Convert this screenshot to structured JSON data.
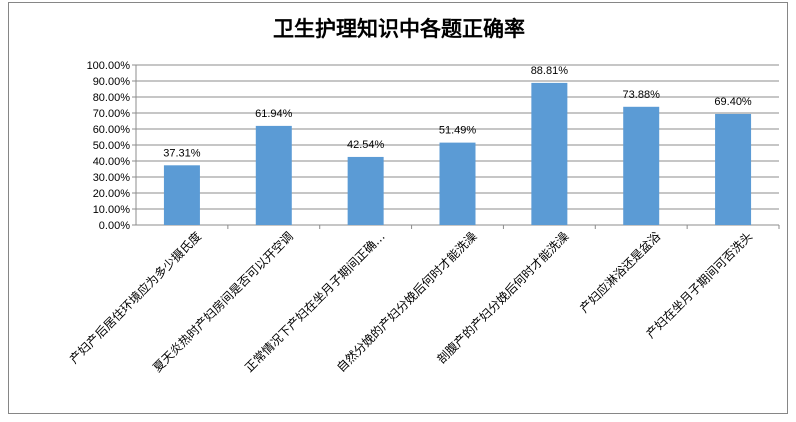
{
  "chart_data": {
    "type": "bar",
    "title": "卫生护理知识中各题正确率",
    "categories": [
      "产妇产后居住环境应为多少摄氏度",
      "夏天炎热时产妇房间是否可以开空调",
      "正常情况下产妇在坐月子期间正确…",
      "自然分娩的产妇分娩后何时才能洗澡",
      "剖腹产的产妇分娩后何时才能洗澡",
      "产妇应淋浴还是盆浴",
      "产妇在坐月子期间可否洗头"
    ],
    "values": [
      37.31,
      61.94,
      42.54,
      51.49,
      88.81,
      73.88,
      69.4
    ],
    "data_labels": [
      "37.31%",
      "61.94%",
      "42.54%",
      "51.49%",
      "88.81%",
      "73.88%",
      "69.40%"
    ],
    "y_ticks": [
      "0.00%",
      "10.00%",
      "20.00%",
      "30.00%",
      "40.00%",
      "50.00%",
      "60.00%",
      "70.00%",
      "80.00%",
      "90.00%",
      "100.00%"
    ],
    "ylim": [
      0,
      100
    ],
    "grid": true,
    "legend": "none",
    "bar_color": "#5B9BD5",
    "grid_color": "#8C8C8C"
  }
}
